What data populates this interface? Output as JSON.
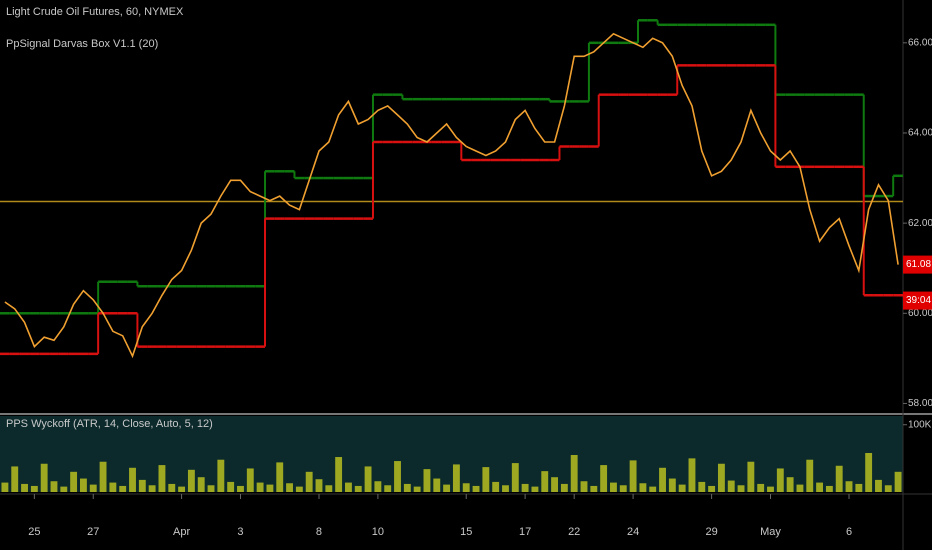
{
  "chart_data": [
    {
      "type": "line",
      "title": "Light Crude Oil Futures, 60, NYMEX",
      "subtitle": "PpSignal Darvas Box V1.1 (20)",
      "categories": [
        null,
        null,
        null,
        "25",
        null,
        null,
        null,
        null,
        null,
        "27",
        null,
        null,
        null,
        null,
        null,
        null,
        null,
        null,
        "Apr",
        null,
        null,
        null,
        null,
        null,
        "3",
        null,
        null,
        null,
        null,
        null,
        null,
        null,
        "8",
        null,
        null,
        null,
        null,
        null,
        "10",
        null,
        null,
        null,
        null,
        null,
        null,
        null,
        null,
        "15",
        null,
        null,
        null,
        null,
        null,
        "17",
        null,
        null,
        null,
        null,
        "22",
        null,
        null,
        null,
        null,
        null,
        "24",
        null,
        null,
        null,
        null,
        null,
        null,
        null,
        "29",
        null,
        null,
        null,
        null,
        null,
        "May",
        null,
        null,
        null,
        null,
        null,
        null,
        null,
        "6",
        null,
        null,
        null,
        null,
        null
      ],
      "series": [
        {
          "color": "#f0a030",
          "values": [
            60.25,
            60.1,
            59.8,
            59.26,
            59.47,
            59.4,
            59.7,
            60.2,
            60.5,
            60.3,
            60.0,
            59.6,
            59.5,
            59.05,
            59.7,
            60.0,
            60.4,
            60.75,
            60.95,
            61.4,
            62.0,
            62.2,
            62.6,
            62.95,
            62.95,
            62.7,
            62.6,
            62.5,
            62.6,
            62.4,
            62.3,
            62.95,
            63.6,
            63.8,
            64.4,
            64.7,
            64.2,
            64.3,
            64.5,
            64.6,
            64.4,
            64.2,
            63.9,
            63.8,
            64.0,
            64.2,
            63.9,
            63.7,
            63.6,
            63.5,
            63.6,
            63.8,
            64.3,
            64.5,
            64.1,
            63.8,
            63.8,
            64.6,
            65.7,
            65.7,
            65.8,
            66.0,
            66.2,
            66.1,
            66.0,
            65.9,
            66.1,
            66.0,
            65.7,
            65.05,
            64.6,
            63.6,
            63.05,
            63.15,
            63.4,
            63.8,
            64.5,
            64.0,
            63.6,
            63.4,
            63.6,
            63.25,
            62.3,
            61.6,
            61.9,
            62.1,
            61.5,
            60.95,
            62.3,
            62.85,
            62.5,
            61.08
          ]
        },
        {
          "color": "#0f7a0f",
          "values": [
            60.0,
            60.0,
            60.0,
            60.0,
            60.0,
            60.0,
            60.0,
            60.0,
            60.0,
            60.0,
            60.7,
            60.7,
            60.7,
            60.7,
            60.6,
            60.6,
            60.6,
            60.6,
            60.6,
            60.6,
            60.6,
            60.6,
            60.6,
            60.6,
            60.6,
            60.6,
            60.6,
            63.15,
            63.15,
            63.15,
            63.0,
            63.0,
            63.0,
            63.0,
            63.0,
            63.0,
            63.0,
            63.0,
            64.85,
            64.85,
            64.85,
            64.75,
            64.75,
            64.75,
            64.75,
            64.75,
            64.75,
            64.75,
            64.75,
            64.75,
            64.75,
            64.75,
            64.75,
            64.75,
            64.75,
            64.75,
            64.7,
            64.7,
            64.7,
            64.7,
            66.0,
            66.0,
            66.0,
            66.0,
            66.0,
            66.5,
            66.5,
            66.4,
            66.4,
            66.4,
            66.4,
            66.4,
            66.4,
            66.4,
            66.4,
            66.4,
            66.4,
            66.4,
            66.4,
            64.85,
            64.85,
            64.85,
            64.85,
            64.85,
            64.85,
            64.85,
            64.85,
            64.85,
            62.6,
            62.6,
            62.6,
            63.05
          ]
        },
        {
          "color": "#d81010",
          "values": [
            59.1,
            59.1,
            59.1,
            59.1,
            59.1,
            59.1,
            59.1,
            59.1,
            59.1,
            59.1,
            60.0,
            60.0,
            60.0,
            60.0,
            59.26,
            59.26,
            59.26,
            59.26,
            59.26,
            59.26,
            59.26,
            59.26,
            59.26,
            59.26,
            59.26,
            59.26,
            59.26,
            62.1,
            62.1,
            62.1,
            62.1,
            62.1,
            62.1,
            62.1,
            62.1,
            62.1,
            62.1,
            62.1,
            63.8,
            63.8,
            63.8,
            63.8,
            63.8,
            63.8,
            63.8,
            63.8,
            63.8,
            63.4,
            63.4,
            63.4,
            63.4,
            63.4,
            63.4,
            63.4,
            63.4,
            63.4,
            63.4,
            63.7,
            63.7,
            63.7,
            63.7,
            64.85,
            64.85,
            64.85,
            64.85,
            64.85,
            64.85,
            64.85,
            64.85,
            65.5,
            65.5,
            65.5,
            65.5,
            65.5,
            65.5,
            65.5,
            65.5,
            65.5,
            65.5,
            63.25,
            63.25,
            63.25,
            63.25,
            63.25,
            63.25,
            63.25,
            63.25,
            63.25,
            60.4,
            60.4,
            60.4,
            60.4
          ]
        }
      ],
      "hline": {
        "value": 62.48,
        "color": "#b08a1a"
      },
      "last_price": {
        "value": 61.08,
        "label": "61.08"
      },
      "countdown": "39:04",
      "ylim": [
        57.81,
        66.95
      ],
      "yticks": [
        {
          "value": 58,
          "label": "58.00"
        },
        {
          "value": 60,
          "label": "60.00"
        },
        {
          "value": 62,
          "label": "62.00"
        },
        {
          "value": 64,
          "label": "64.00"
        },
        {
          "value": 66,
          "label": "66.00"
        }
      ]
    },
    {
      "type": "bar",
      "title": "PPS Wyckoff (ATR, 14, Close, Auto, 5, 12)",
      "color": "#b8c020",
      "values": [
        14,
        38,
        12,
        9,
        42,
        16,
        8,
        30,
        20,
        11,
        45,
        14,
        9,
        36,
        18,
        10,
        40,
        12,
        8,
        33,
        22,
        10,
        48,
        15,
        9,
        35,
        14,
        11,
        44,
        13,
        8,
        30,
        19,
        10,
        52,
        14,
        9,
        38,
        16,
        10,
        46,
        12,
        8,
        34,
        20,
        11,
        41,
        13,
        9,
        37,
        15,
        10,
        43,
        12,
        8,
        31,
        22,
        12,
        55,
        16,
        9,
        40,
        14,
        10,
        47,
        13,
        8,
        36,
        20,
        11,
        50,
        15,
        9,
        42,
        17,
        10,
        45,
        12,
        8,
        35,
        22,
        11,
        48,
        14,
        9,
        39,
        16,
        12,
        58,
        18,
        10,
        30
      ],
      "ylim": [
        0,
        113
      ],
      "yticks": [
        {
          "value": 100,
          "label": "100K"
        }
      ]
    }
  ]
}
